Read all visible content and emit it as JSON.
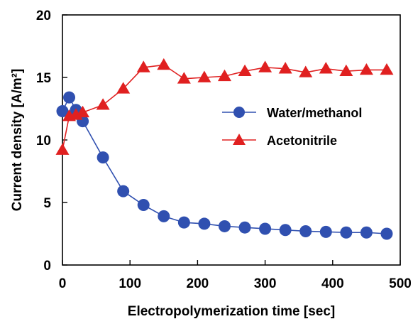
{
  "chart_data": {
    "type": "scatter",
    "title": "",
    "xlabel": "Electropolymerization  time [sec]",
    "ylabel": "Current density [A/m²]",
    "xlim": [
      0,
      500
    ],
    "ylim": [
      0,
      20
    ],
    "xticks": [
      "0",
      "100",
      "200",
      "300",
      "400",
      "500"
    ],
    "yticks": [
      "0",
      "5",
      "10",
      "15",
      "20"
    ],
    "grid": false,
    "legend_position": "center-right",
    "series": [
      {
        "name": "Water/methanol",
        "marker": "circle",
        "color": "#3050b0",
        "points": [
          [
            0,
            12.3
          ],
          [
            10,
            13.4
          ],
          [
            20,
            12.4
          ],
          [
            30,
            11.5
          ],
          [
            60,
            8.6
          ],
          [
            90,
            5.9
          ],
          [
            120,
            4.8
          ],
          [
            150,
            3.9
          ],
          [
            180,
            3.4
          ],
          [
            210,
            3.3
          ],
          [
            240,
            3.1
          ],
          [
            270,
            3.0
          ],
          [
            300,
            2.9
          ],
          [
            330,
            2.8
          ],
          [
            360,
            2.7
          ],
          [
            390,
            2.65
          ],
          [
            420,
            2.6
          ],
          [
            450,
            2.6
          ],
          [
            480,
            2.5
          ]
        ]
      },
      {
        "name": "Acetonitrile",
        "marker": "triangle",
        "color": "#e02020",
        "points": [
          [
            0,
            9.2
          ],
          [
            10,
            11.9
          ],
          [
            20,
            12.0
          ],
          [
            30,
            12.2
          ],
          [
            60,
            12.8
          ],
          [
            90,
            14.1
          ],
          [
            120,
            15.8
          ],
          [
            150,
            16.0
          ],
          [
            180,
            14.9
          ],
          [
            210,
            15.0
          ],
          [
            240,
            15.1
          ],
          [
            270,
            15.5
          ],
          [
            300,
            15.8
          ],
          [
            330,
            15.7
          ],
          [
            360,
            15.4
          ],
          [
            390,
            15.7
          ],
          [
            420,
            15.5
          ],
          [
            450,
            15.6
          ],
          [
            480,
            15.6
          ]
        ]
      }
    ]
  }
}
